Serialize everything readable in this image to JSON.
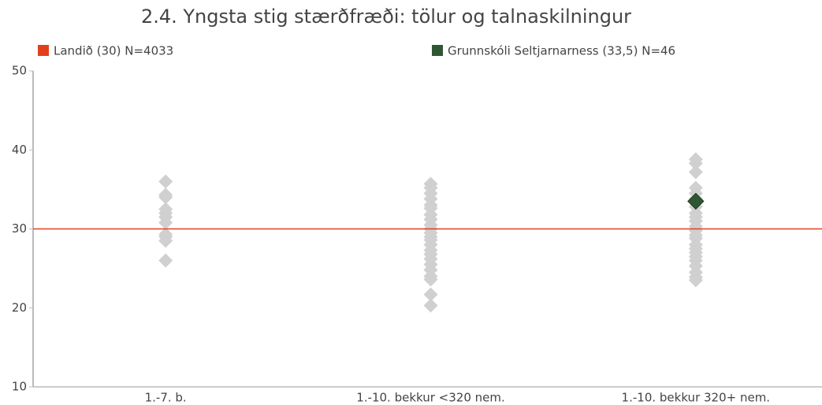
{
  "chart_data": {
    "type": "strip",
    "title": "2.4. Yngsta stig stærðfræði: tölur og talnaskilningur",
    "categories": [
      "1.-7. b.",
      "1.-10. bekkur <320 nem.",
      "1.-10. bekkur 320+ nem."
    ],
    "point_color": "#d0d0d0",
    "groups": [
      [
        36.0,
        34.3,
        34.0,
        32.5,
        32.0,
        31.5,
        30.8,
        29.3,
        29.0,
        28.5,
        26.0
      ],
      [
        35.7,
        35.2,
        34.5,
        33.8,
        33.0,
        32.6,
        31.8,
        31.2,
        30.5,
        30.0,
        29.5,
        29.0,
        28.6,
        28.0,
        27.3,
        26.8,
        26.2,
        25.5,
        24.8,
        24.0,
        23.6,
        21.7,
        20.3
      ],
      [
        38.8,
        38.3,
        37.2,
        35.2,
        34.5,
        33.8,
        32.8,
        32.0,
        31.5,
        31.0,
        30.3,
        29.8,
        29.2,
        28.8,
        28.0,
        27.5,
        27.0,
        26.5,
        26.0,
        25.3,
        24.5,
        23.9,
        23.5
      ]
    ],
    "reference": {
      "name": "Landið (30) N=4033",
      "color": "#e2401c",
      "value": 30
    },
    "series": [
      {
        "name": "Grunnskóli Seltjarnarness (33,5) N=46",
        "color": "#2f5632",
        "values": [
          null,
          null,
          33.5
        ]
      }
    ],
    "ylim": [
      10,
      50
    ],
    "yticks": [
      10,
      20,
      30,
      40,
      50
    ]
  }
}
